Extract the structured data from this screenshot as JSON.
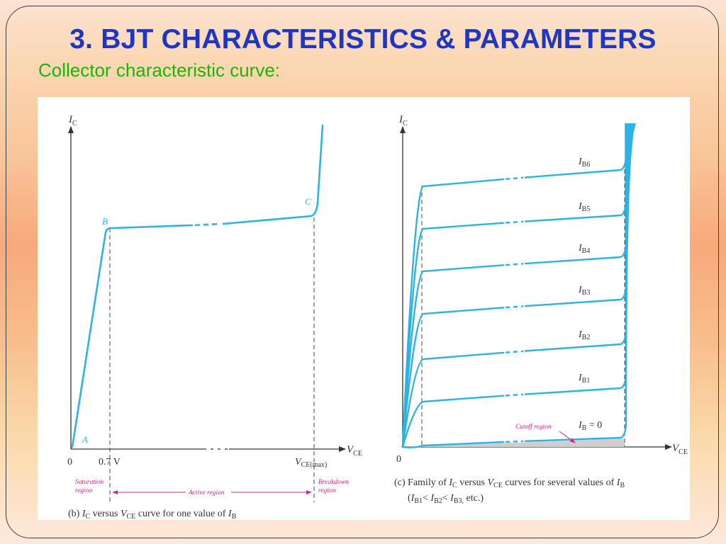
{
  "slide": {
    "title": "3. BJT CHARACTERISTICS & PARAMETERS",
    "subtitle": "Collector characteristic curve:"
  },
  "colors": {
    "title": "#1f36c4",
    "subtitle": "#17b800",
    "curve": "#2cb3e3",
    "region_label": "#d1278f",
    "axis": "#333333"
  },
  "diagram_b": {
    "axis_ic": "I",
    "axis_ic_sub": "C",
    "axis_vce": "V",
    "axis_vce_sub": "CE",
    "point_a": "A",
    "point_b": "B",
    "point_c": "C",
    "origin": "0",
    "tick_07": "0.7 V",
    "tick_vcemax": "V",
    "tick_vcemax_sub": "CE(max)",
    "saturation_region_1": "Saturation",
    "saturation_region_2": "region",
    "active_region": "Active region",
    "breakdown_region_1": "Breakdown",
    "breakdown_region_2": "region",
    "caption_prefix": "(b) ",
    "caption_ic": "I",
    "caption_ic_sub": "C",
    "caption_mid": " versus ",
    "caption_vce": "V",
    "caption_vce_sub": "CE",
    "caption_tail": " curve for one value of ",
    "caption_ib": "I",
    "caption_ib_sub": "B"
  },
  "diagram_c": {
    "axis_ic": "I",
    "axis_ic_sub": "C",
    "axis_vce": "V",
    "axis_vce_sub": "CE",
    "origin": "0",
    "curve_labels": [
      {
        "main": "I",
        "sub": "B6",
        "extra": ""
      },
      {
        "main": "I",
        "sub": "B5",
        "extra": ""
      },
      {
        "main": "I",
        "sub": "B4",
        "extra": ""
      },
      {
        "main": "I",
        "sub": "B3",
        "extra": ""
      },
      {
        "main": "I",
        "sub": "B2",
        "extra": ""
      },
      {
        "main": "I",
        "sub": "B1",
        "extra": ""
      },
      {
        "main": "I",
        "sub": "B",
        "extra": " = 0"
      }
    ],
    "cutoff_region": "Cutoff region",
    "caption_line1_prefix": "(c) Family of ",
    "caption_ic": "I",
    "caption_ic_sub": "C",
    "caption_mid": " versus ",
    "caption_vce": "V",
    "caption_vce_sub": "CE",
    "caption_tail": " curves for several values of ",
    "caption_ib": "I",
    "caption_ib_sub": "B",
    "caption_line2_open": "(",
    "caption_b1": "I",
    "caption_b1_sub": "B1",
    "caption_lt1": "< ",
    "caption_b2": "I",
    "caption_b2_sub": "B2",
    "caption_lt2": "< ",
    "caption_b3": "I",
    "caption_b3_sub": "B3,",
    "caption_line2_close": " etc.)"
  }
}
